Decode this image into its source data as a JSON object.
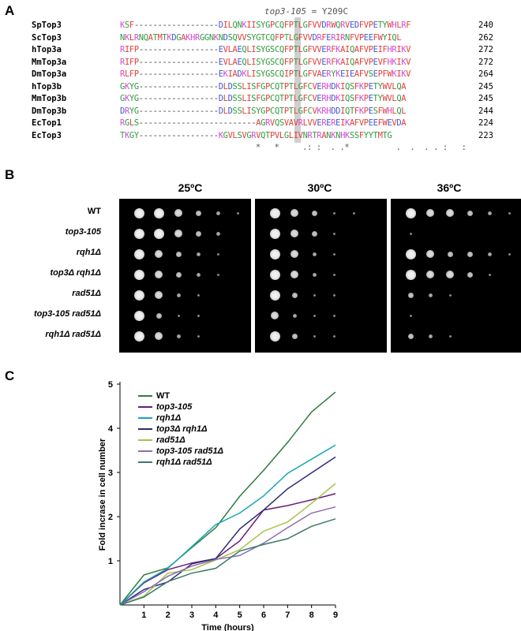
{
  "panels": {
    "a": "A",
    "b": "B",
    "c": "C"
  },
  "alignment": {
    "title_allele": "top3-105",
    "title_rest": " = Y209C",
    "rows": [
      {
        "name": "SpTop3",
        "seq": "KSF------------------DILQNKIISYGPCQFPTLGFVVDRWQRVEDFVPETYWHLRF",
        "num": "240"
      },
      {
        "name": "ScTop3",
        "seq": "NKLRNQATMTKDGAKHRGGNKNDSQVVSYGTCQFPTLGFVVDRFERIRNFVPEEFWYIQL",
        "num": "262"
      },
      {
        "name": "hTop3a",
        "seq": "RIFP-----------------EVLAEQLISYGSCQFPTLGFVVERFKAIQAFVPEIFHRIKV",
        "num": "272"
      },
      {
        "name": "MmTop3a",
        "seq": "RIFP-----------------EVLAEQLISYGSCQFPTLGFVVERFKAIQAFVPEVFHKIKV",
        "num": "272"
      },
      {
        "name": "DmTop3a",
        "seq": "RLFP-----------------EKIADKLISYGSCQIPTLGFVAERYKEIEAFVSEPFWKIKV",
        "num": "264"
      },
      {
        "name": "hTop3b",
        "seq": "GKYG-----------------DLDSSLISFGPCQTPTLGFCVERHDKIQSFKPETYWVLQA",
        "num": "245"
      },
      {
        "name": "MmTop3b",
        "seq": "GKYG-----------------DLDSSLISFGPCQTPTLGFCVERHDKIQSFKPETYWVLQA",
        "num": "245"
      },
      {
        "name": "DmTop3b",
        "seq": "DRYG-----------------DLDSSLISYGPCQTPTLGFCVKRHDDIQTFKPESFWHLQL",
        "num": "244"
      },
      {
        "name": "EcTop1",
        "seq": "RGLS-------------------------AGRVQSVAVRLVVEREREIKAFVPEEFWEVDA",
        "num": "224"
      },
      {
        "name": "EcTop3",
        "seq": "TKGY-----------------KGVLSVGRVQTPVLGLIVNRTRANKNHKSSFYYTMTG",
        "num": "223"
      }
    ],
    "consensus": "                             *   *     .: :  . .*          .  .  . . :   :"
  },
  "spot_assay": {
    "temperatures": [
      "25ºC",
      "30ºC",
      "36ºC"
    ],
    "strains": [
      "WT",
      "top3-105",
      "rqh1Δ",
      "top3Δ rqh1Δ",
      "rad51Δ",
      "top3-105 rad51Δ",
      "rqh1Δ rad51Δ"
    ],
    "growth": [
      [
        [
          5,
          5,
          4,
          3,
          2,
          1
        ],
        [
          5,
          4,
          3,
          1,
          1,
          0
        ],
        [
          5,
          4,
          4,
          3,
          2,
          1
        ]
      ],
      [
        [
          5,
          5,
          4,
          3,
          2,
          0
        ],
        [
          5,
          4,
          3,
          1,
          0,
          0
        ],
        [
          1,
          0,
          0,
          0,
          0,
          0
        ]
      ],
      [
        [
          5,
          4,
          3,
          2,
          1,
          0
        ],
        [
          5,
          4,
          2,
          1,
          0,
          0
        ],
        [
          5,
          4,
          3,
          3,
          2,
          1
        ]
      ],
      [
        [
          5,
          4,
          3,
          2,
          1,
          0
        ],
        [
          5,
          4,
          2,
          1,
          0,
          0
        ],
        [
          5,
          4,
          4,
          3,
          1,
          0
        ]
      ],
      [
        [
          5,
          4,
          2,
          1,
          0,
          0
        ],
        [
          5,
          3,
          1,
          1,
          0,
          0
        ],
        [
          3,
          2,
          1,
          0,
          0,
          0
        ]
      ],
      [
        [
          5,
          3,
          1,
          1,
          0,
          0
        ],
        [
          4,
          2,
          1,
          1,
          0,
          0
        ],
        [
          1,
          0,
          0,
          0,
          0,
          0
        ]
      ],
      [
        [
          5,
          4,
          2,
          1,
          0,
          0
        ],
        [
          5,
          3,
          1,
          1,
          0,
          0
        ],
        [
          3,
          2,
          1,
          0,
          0,
          0
        ]
      ]
    ]
  },
  "chart_data": {
    "type": "line",
    "xlabel": "Time (hours)",
    "ylabel": "Fold incrase in cell number",
    "x": [
      0,
      1,
      2,
      3,
      4,
      5,
      6,
      7,
      8,
      9
    ],
    "xticks": [
      "1",
      "2",
      "3",
      "4",
      "5",
      "6",
      "7",
      "8",
      "9"
    ],
    "yticks": [
      "1",
      "2",
      "3",
      "4",
      "5"
    ],
    "xlim": [
      0,
      9
    ],
    "ylim": [
      0,
      5
    ],
    "legend_position": "top-left",
    "series": [
      {
        "name": "WT",
        "color": "#2e7d3c",
        "values": [
          0.0,
          0.68,
          0.84,
          1.3,
          1.75,
          2.46,
          3.05,
          3.68,
          4.37,
          4.82
        ]
      },
      {
        "name": "top3-105",
        "color": "#6a1b7a",
        "values": [
          0.0,
          0.5,
          0.8,
          0.95,
          1.05,
          1.45,
          2.15,
          2.25,
          2.38,
          2.52
        ]
      },
      {
        "name": "rqh1Δ",
        "color": "#17a5b3",
        "values": [
          0.0,
          0.52,
          0.83,
          1.32,
          1.82,
          2.08,
          2.47,
          2.98,
          3.3,
          3.62
        ]
      },
      {
        "name": "top3Δ rqh1Δ",
        "color": "#2c2a7a",
        "values": [
          0.0,
          0.35,
          0.52,
          0.93,
          1.05,
          1.72,
          2.15,
          2.63,
          2.99,
          3.35
        ]
      },
      {
        "name": "rad51Δ",
        "color": "#a8c24a",
        "values": [
          0.0,
          0.2,
          0.72,
          0.8,
          1.02,
          1.25,
          1.67,
          1.88,
          2.3,
          2.75
        ]
      },
      {
        "name": "top3-105 rad51Δ",
        "color": "#8a6fb0",
        "values": [
          0.0,
          0.3,
          0.65,
          0.88,
          1.03,
          1.12,
          1.4,
          1.75,
          2.08,
          2.22
        ]
      },
      {
        "name": "rqh1Δ rad51Δ",
        "color": "#3d7a68",
        "values": [
          0.0,
          0.18,
          0.53,
          0.72,
          0.83,
          1.22,
          1.37,
          1.5,
          1.78,
          1.95
        ]
      }
    ]
  }
}
